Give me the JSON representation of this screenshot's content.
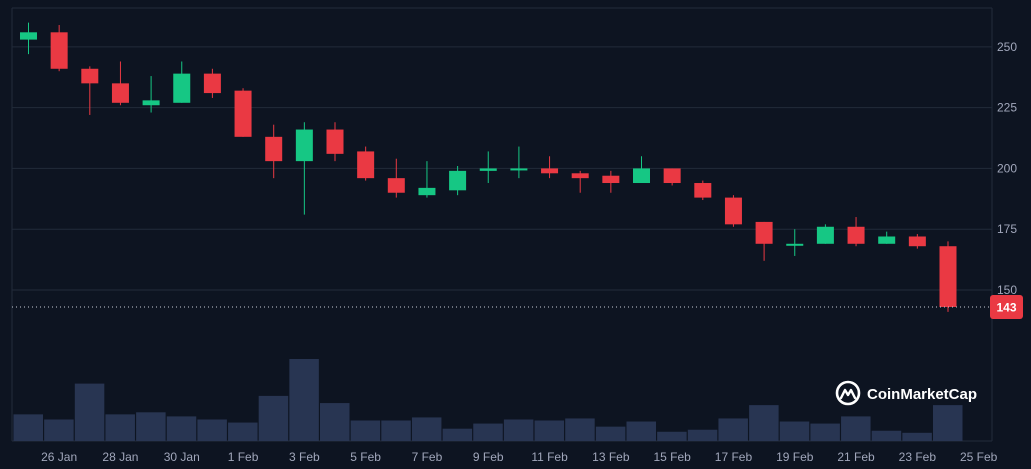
{
  "chart_data": {
    "type": "candlestick",
    "title": "",
    "xlabel": "",
    "ylabel": "",
    "ylim": [
      136,
      266
    ],
    "y_ticks": [
      150,
      175,
      200,
      225,
      250
    ],
    "x_ticks": [
      {
        "day": 1,
        "label": "26 Jan"
      },
      {
        "day": 3,
        "label": "28 Jan"
      },
      {
        "day": 5,
        "label": "30 Jan"
      },
      {
        "day": 7,
        "label": "1 Feb"
      },
      {
        "day": 9,
        "label": "3 Feb"
      },
      {
        "day": 11,
        "label": "5 Feb"
      },
      {
        "day": 13,
        "label": "7 Feb"
      },
      {
        "day": 15,
        "label": "9 Feb"
      },
      {
        "day": 17,
        "label": "11 Feb"
      },
      {
        "day": 19,
        "label": "13 Feb"
      },
      {
        "day": 21,
        "label": "15 Feb"
      },
      {
        "day": 23,
        "label": "17 Feb"
      },
      {
        "day": 25,
        "label": "19 Feb"
      },
      {
        "day": 27,
        "label": "21 Feb"
      },
      {
        "day": 29,
        "label": "23 Feb"
      },
      {
        "day": 31,
        "label": "25 Feb"
      }
    ],
    "grid": true,
    "current_price": 143,
    "colors": {
      "up": "#16c784",
      "down": "#ea3943",
      "volume": "#283552",
      "grid": "#222b3a",
      "background": "#0d1421",
      "axis_text": "#a1a7bb",
      "price_tag": "#ea3943"
    },
    "candles": [
      {
        "day": 0,
        "open": 253,
        "high": 260,
        "low": 247,
        "close": 256,
        "volume": 26
      },
      {
        "day": 1,
        "open": 256,
        "high": 259,
        "low": 240,
        "close": 241,
        "volume": 21
      },
      {
        "day": 2,
        "open": 241,
        "high": 242,
        "low": 222,
        "close": 235,
        "volume": 56
      },
      {
        "day": 3,
        "open": 235,
        "high": 244,
        "low": 226,
        "close": 227,
        "volume": 26
      },
      {
        "day": 4,
        "open": 226,
        "high": 238,
        "low": 223,
        "close": 228,
        "volume": 28
      },
      {
        "day": 5,
        "open": 227,
        "high": 244,
        "low": 227,
        "close": 239,
        "volume": 24
      },
      {
        "day": 6,
        "open": 239,
        "high": 241,
        "low": 229,
        "close": 231,
        "volume": 21
      },
      {
        "day": 7,
        "open": 232,
        "high": 233,
        "low": 213,
        "close": 213,
        "volume": 18
      },
      {
        "day": 8,
        "open": 213,
        "high": 218,
        "low": 196,
        "close": 203,
        "volume": 44
      },
      {
        "day": 9,
        "open": 203,
        "high": 219,
        "low": 181,
        "close": 216,
        "volume": 80
      },
      {
        "day": 10,
        "open": 216,
        "high": 219,
        "low": 203,
        "close": 206,
        "volume": 37
      },
      {
        "day": 11,
        "open": 207,
        "high": 209,
        "low": 195,
        "close": 196,
        "volume": 20
      },
      {
        "day": 12,
        "open": 196,
        "high": 204,
        "low": 188,
        "close": 190,
        "volume": 20
      },
      {
        "day": 13,
        "open": 189,
        "high": 203,
        "low": 188,
        "close": 192,
        "volume": 23
      },
      {
        "day": 14,
        "open": 191,
        "high": 201,
        "low": 189,
        "close": 199,
        "volume": 12
      },
      {
        "day": 15,
        "open": 199,
        "high": 207,
        "low": 194,
        "close": 200,
        "volume": 17
      },
      {
        "day": 16,
        "open": 200,
        "high": 209,
        "low": 196,
        "close": 200,
        "volume": 21
      },
      {
        "day": 17,
        "open": 200,
        "high": 205,
        "low": 196,
        "close": 198,
        "volume": 20
      },
      {
        "day": 18,
        "open": 198,
        "high": 199,
        "low": 190,
        "close": 196,
        "volume": 22
      },
      {
        "day": 19,
        "open": 197,
        "high": 199,
        "low": 190,
        "close": 194,
        "volume": 14
      },
      {
        "day": 20,
        "open": 194,
        "high": 205,
        "low": 194,
        "close": 200,
        "volume": 19
      },
      {
        "day": 21,
        "open": 200,
        "high": 200,
        "low": 193,
        "close": 194,
        "volume": 9
      },
      {
        "day": 22,
        "open": 194,
        "high": 195,
        "low": 187,
        "close": 188,
        "volume": 11
      },
      {
        "day": 23,
        "open": 188,
        "high": 189,
        "low": 176,
        "close": 177,
        "volume": 22
      },
      {
        "day": 24,
        "open": 178,
        "high": 178,
        "low": 162,
        "close": 169,
        "volume": 35
      },
      {
        "day": 25,
        "open": 169,
        "high": 175,
        "low": 164,
        "close": 169,
        "volume": 19
      },
      {
        "day": 26,
        "open": 169,
        "high": 177,
        "low": 169,
        "close": 176,
        "volume": 17
      },
      {
        "day": 27,
        "open": 176,
        "high": 180,
        "low": 168,
        "close": 169,
        "volume": 24
      },
      {
        "day": 28,
        "open": 169,
        "high": 174,
        "low": 169,
        "close": 172,
        "volume": 10
      },
      {
        "day": 29,
        "open": 172,
        "high": 173,
        "low": 167,
        "close": 168,
        "volume": 8
      },
      {
        "day": 30,
        "open": 168,
        "high": 170,
        "low": 141,
        "close": 143,
        "volume": 35
      }
    ]
  },
  "watermark": {
    "text": "CoinMarketCap",
    "icon": "coinmarketcap-logo-icon"
  }
}
